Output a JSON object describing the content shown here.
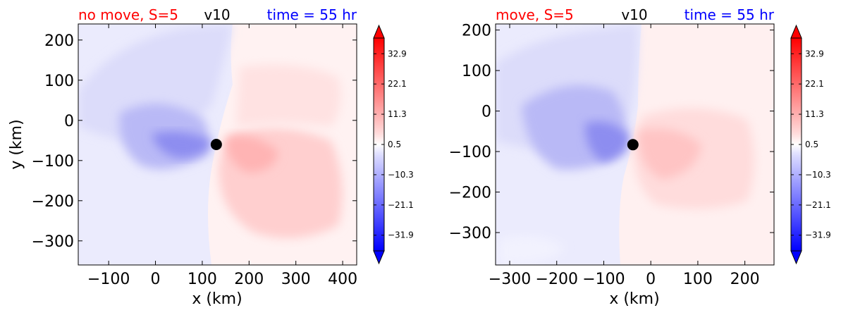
{
  "chart_data": [
    {
      "type": "heatmap",
      "panel": "left",
      "title_left": "no move, S=5",
      "title_center": "v10",
      "title_right": "time = 55 hr",
      "title_left_color": "#ff0000",
      "title_right_color": "#0000ff",
      "xlabel": "x (km)",
      "ylabel": "y (km)",
      "xlim": [
        -165,
        430
      ],
      "ylim": [
        -360,
        240
      ],
      "xticks": [
        -100,
        0,
        100,
        200,
        300,
        400
      ],
      "yticks": [
        200,
        100,
        0,
        -100,
        -200,
        -300
      ],
      "xtick_labels": [
        "−100",
        "0",
        "100",
        "200",
        "300",
        "400"
      ],
      "ytick_labels": [
        "200",
        "100",
        "0",
        "−100",
        "−200",
        "−300"
      ],
      "marker": {
        "x": 130,
        "y": -60
      },
      "colorbar": {
        "min": -37.5,
        "max": 38.5,
        "ticks": [
          32.9,
          22.1,
          11.3,
          0.5,
          -10.3,
          -21.1,
          -31.9
        ],
        "tick_labels": [
          "32.9",
          "22.1",
          "11.3",
          "0.5",
          "−10.3",
          "−21.1",
          "−31.9"
        ],
        "extend": "both"
      }
    },
    {
      "type": "heatmap",
      "panel": "right",
      "title_left": "move, S=5",
      "title_center": "v10",
      "title_right": "time = 55 hr",
      "title_left_color": "#ff0000",
      "title_right_color": "#0000ff",
      "xlabel": "x (km)",
      "ylabel": "",
      "xlim": [
        -330,
        262
      ],
      "ylim": [
        -380,
        215
      ],
      "xticks": [
        -300,
        -200,
        -100,
        0,
        100,
        200
      ],
      "yticks": [
        200,
        100,
        0,
        -100,
        -200,
        -300
      ],
      "xtick_labels": [
        "−300",
        "−200",
        "−100",
        "0",
        "100",
        "200"
      ],
      "ytick_labels": [
        "200",
        "100",
        "0",
        "−100",
        "−200",
        "−300"
      ],
      "marker": {
        "x": -38,
        "y": -83
      },
      "colorbar": {
        "min": -37.5,
        "max": 38.5,
        "ticks": [
          32.9,
          22.1,
          11.3,
          0.5,
          -10.3,
          -21.1,
          -31.9
        ],
        "tick_labels": [
          "32.9",
          "22.1",
          "11.3",
          "0.5",
          "−10.3",
          "−21.1",
          "−31.9"
        ],
        "extend": "both"
      }
    }
  ]
}
